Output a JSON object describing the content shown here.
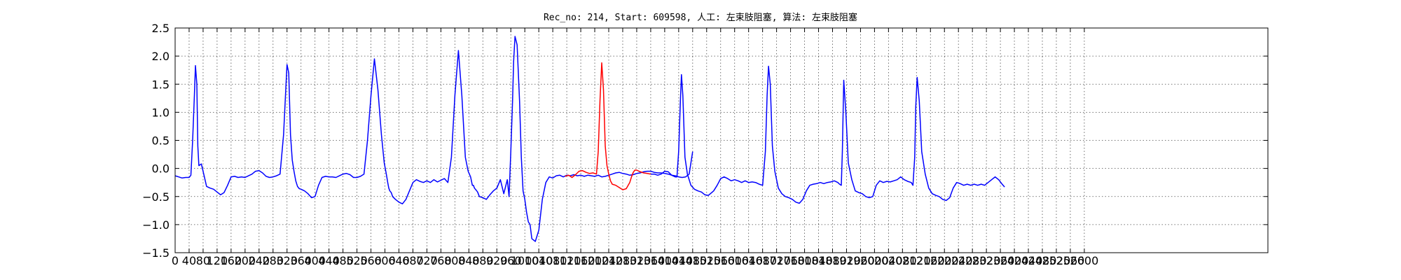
{
  "chart_data": {
    "type": "line",
    "title": "Rec_no: 214, Start: 609598, 人工: 左束肢阻塞, 算法: 左束肢阻塞",
    "xlabel": "",
    "ylabel": "",
    "xlim": [
      0,
      3125
    ],
    "ylim": [
      -1.5,
      2.5
    ],
    "grid": true,
    "y_ticks": [
      -1.5,
      -1.0,
      -0.5,
      0.0,
      0.5,
      1.0,
      1.5,
      2.0,
      2.5
    ],
    "y_tick_labels": [
      "−1.5",
      "−1.0",
      "−0.5",
      "0.0",
      "0.5",
      "1.0",
      "1.5",
      "2.0",
      "2.5"
    ],
    "x_ticks": [
      0,
      40,
      80,
      120,
      160,
      200,
      240,
      280,
      320,
      360,
      400,
      440,
      480,
      520,
      560,
      600,
      640,
      680,
      720,
      760,
      800,
      840,
      880,
      920,
      960,
      1000,
      1040,
      1080,
      1120,
      1160,
      1200,
      1240,
      1280,
      1320,
      1360,
      1400,
      1440,
      1480,
      1520,
      1560,
      1600,
      1640,
      1680,
      1720,
      1760,
      1800,
      1840,
      1880,
      1920,
      1960,
      2000,
      2040,
      2080,
      2120,
      2160,
      2200,
      2240,
      2280,
      2320,
      2360,
      2400,
      2440,
      2480,
      2520,
      2560,
      2600
    ],
    "x_tick_labels": [
      "0",
      "40",
      "80",
      "120",
      "160",
      "200",
      "240",
      "280",
      "320",
      "360",
      "400",
      "440",
      "480",
      "520",
      "560",
      "600",
      "640",
      "680",
      "720",
      "760",
      "800",
      "840",
      "880",
      "920",
      "960",
      "1000",
      "1040",
      "1080",
      "1120",
      "1160",
      "1200",
      "1240",
      "1280",
      "1320",
      "1360",
      "1400",
      "1440",
      "1480",
      "1520",
      "1560",
      "1600",
      "1640",
      "1680",
      "1720",
      "1760",
      "1800",
      "1840",
      "1880",
      "1920",
      "1960",
      "2000",
      "2040",
      "2080",
      "2120",
      "2160",
      "2200",
      "2240",
      "2280",
      "2320",
      "2360",
      "2400",
      "2440",
      "2480",
      "2520",
      "2560",
      "2600"
    ],
    "series": [
      {
        "color": "#0000ff",
        "x": [
          0,
          10,
          20,
          30,
          40,
          45,
          50,
          55,
          58,
          62,
          65,
          68,
          75,
          80,
          90,
          100,
          110,
          120,
          130,
          140,
          150,
          160,
          170,
          180,
          190,
          200,
          210,
          220,
          230,
          240,
          250,
          260,
          270,
          280,
          290,
          300,
          310,
          320,
          325,
          330,
          335,
          340,
          345,
          350,
          355,
          360,
          370,
          380,
          390,
          400,
          410,
          420,
          430,
          440,
          450,
          460,
          470,
          480,
          490,
          500,
          510,
          520,
          530,
          540,
          550,
          560,
          570,
          580,
          590,
          598,
          604,
          608,
          611,
          614,
          618,
          622,
          630,
          640,
          650,
          660,
          670,
          680,
          690,
          700,
          710,
          720,
          730,
          740,
          750,
          760,
          770,
          780,
          790,
          800,
          810,
          820,
          830,
          838,
          845,
          850,
          853,
          856,
          860,
          865,
          870,
          880,
          890,
          900,
          910,
          920,
          930,
          940,
          950,
          955,
          960,
          965,
          968,
          972,
          978,
          985,
          990,
          995,
          1000,
          1005,
          1010,
          1015,
          1020,
          1030,
          1040,
          1050,
          1060,
          1070,
          1080,
          1090,
          1100,
          1110,
          1120,
          1130,
          1140,
          1150,
          1160,
          1170,
          1180,
          1190,
          1200,
          1210,
          1220,
          1230,
          1240,
          1250,
          1260,
          1270,
          1280,
          1290,
          1300,
          1310,
          1320,
          1330,
          1340,
          1350,
          1360,
          1370,
          1380,
          1390,
          1400,
          1410,
          1420,
          1430,
          1440,
          1450,
          1460,
          1470,
          1480
        ],
        "y": [
          -0.13,
          -0.15,
          -0.17,
          -0.16,
          -0.16,
          -0.12,
          0.5,
          1.3,
          1.83,
          1.5,
          0.4,
          0.05,
          0.08,
          -0.05,
          -0.32,
          -0.35,
          -0.37,
          -0.42,
          -0.47,
          -0.43,
          -0.3,
          -0.15,
          -0.14,
          -0.16,
          -0.15,
          -0.16,
          -0.13,
          -0.1,
          -0.05,
          -0.04,
          -0.08,
          -0.14,
          -0.16,
          -0.15,
          -0.13,
          -0.1,
          0.6,
          1.85,
          1.7,
          0.6,
          0.15,
          -0.05,
          -0.22,
          -0.32,
          -0.36,
          -0.37,
          -0.4,
          -0.45,
          -0.52,
          -0.5,
          -0.3,
          -0.16,
          -0.14,
          -0.15,
          -0.15,
          -0.16,
          -0.13,
          -0.1,
          -0.09,
          -0.11,
          -0.16,
          -0.16,
          -0.14,
          -0.1,
          0.5,
          1.3,
          1.95,
          1.4,
          0.6,
          0.1,
          -0.1,
          -0.25,
          -0.35,
          -0.4,
          -0.43,
          -0.5,
          -0.55,
          -0.6,
          -0.63,
          -0.55,
          -0.4,
          -0.25,
          -0.2,
          -0.23,
          -0.25,
          -0.22,
          -0.25,
          -0.2,
          -0.24,
          -0.21,
          -0.18,
          -0.25,
          0.2,
          1.3,
          2.1,
          1.3,
          0.2,
          -0.05,
          -0.15,
          -0.3,
          -0.3,
          -0.35,
          -0.38,
          -0.42,
          -0.5,
          -0.52,
          -0.55,
          -0.47,
          -0.4,
          -0.35,
          -0.2,
          -0.45,
          -0.2,
          -0.5,
          0.3,
          1.2,
          1.9,
          2.35,
          2.2,
          1.2,
          0.2,
          -0.4,
          -0.55,
          -0.78,
          -0.95,
          -1.0,
          -1.25,
          -1.3,
          -1.1,
          -0.55,
          -0.25,
          -0.15,
          -0.17,
          -0.13,
          -0.12,
          -0.15,
          -0.12,
          -0.13,
          -0.11,
          -0.13,
          -0.12,
          -0.14,
          -0.12,
          -0.13,
          -0.14,
          -0.12,
          -0.15,
          -0.14,
          -0.12,
          -0.1,
          -0.08,
          -0.07,
          -0.09,
          -0.1,
          -0.12,
          -0.11,
          -0.09,
          -0.08,
          -0.06,
          -0.05,
          -0.05,
          -0.07,
          -0.08,
          -0.08,
          -0.09,
          -0.1,
          -0.12,
          -0.13,
          -0.15,
          -0.16,
          -0.15,
          -0.1,
          0.3
        ]
      },
      {
        "color": "#ff0000",
        "x": [
          1115,
          1125,
          1135,
          1145,
          1155,
          1165,
          1175,
          1185,
          1195,
          1205,
          1210,
          1215,
          1220,
          1225,
          1230,
          1235,
          1240,
          1245,
          1250,
          1260,
          1270,
          1280,
          1290,
          1300,
          1305,
          1310,
          1315,
          1320,
          1330,
          1340,
          1350,
          1360
        ],
        "y": [
          -0.14,
          -0.12,
          -0.16,
          -0.11,
          -0.05,
          -0.04,
          -0.07,
          -0.09,
          -0.08,
          -0.1,
          0.3,
          1.2,
          1.88,
          1.4,
          0.4,
          0.05,
          -0.1,
          -0.22,
          -0.28,
          -0.3,
          -0.34,
          -0.38,
          -0.36,
          -0.25,
          -0.15,
          -0.07,
          -0.03,
          -0.03,
          -0.06,
          -0.08,
          -0.09,
          -0.1
        ]
      },
      {
        "color": "#0000ff",
        "x": [
          1360,
          1370,
          1380,
          1390,
          1400,
          1410,
          1420,
          1430,
          1435,
          1440,
          1445,
          1448,
          1452,
          1458,
          1465,
          1475,
          1485,
          1495,
          1505,
          1515,
          1525,
          1540,
          1550,
          1560,
          1570,
          1580,
          1590,
          1600,
          1610,
          1620,
          1630,
          1640,
          1650,
          1660,
          1670,
          1680,
          1688,
          1693,
          1697,
          1702,
          1708,
          1715,
          1725,
          1735,
          1745,
          1755,
          1765,
          1775,
          1785,
          1795,
          1805,
          1815,
          1825,
          1835,
          1845,
          1855,
          1865,
          1875,
          1885,
          1895,
          1900,
          1905,
          1908,
          1912,
          1918,
          1925,
          1935,
          1945,
          1955,
          1965,
          1975,
          1985,
          1995,
          2005,
          2015,
          2025,
          2035,
          2045,
          2055,
          2065,
          2075,
          2085,
          2095,
          2105,
          2110,
          2115,
          2118,
          2122,
          2128,
          2135,
          2145,
          2155,
          2165,
          2175,
          2185,
          2195,
          2205,
          2215,
          2225,
          2235,
          2245,
          2255,
          2265,
          2275,
          2285,
          2295,
          2305,
          2315,
          2325,
          2335,
          2345,
          2355,
          2365,
          2372
        ],
        "y": [
          -0.1,
          -0.1,
          -0.12,
          -0.1,
          -0.05,
          -0.06,
          -0.12,
          -0.15,
          -0.15,
          0.3,
          1.2,
          1.67,
          1.3,
          0.2,
          -0.1,
          -0.3,
          -0.37,
          -0.4,
          -0.42,
          -0.47,
          -0.48,
          -0.4,
          -0.3,
          -0.18,
          -0.15,
          -0.18,
          -0.22,
          -0.2,
          -0.22,
          -0.25,
          -0.22,
          -0.25,
          -0.24,
          -0.25,
          -0.28,
          -0.3,
          0.3,
          1.3,
          1.82,
          1.5,
          0.4,
          -0.05,
          -0.35,
          -0.45,
          -0.5,
          -0.52,
          -0.55,
          -0.6,
          -0.62,
          -0.55,
          -0.4,
          -0.3,
          -0.28,
          -0.27,
          -0.25,
          -0.27,
          -0.25,
          -0.24,
          -0.22,
          -0.25,
          -0.28,
          -0.3,
          0.3,
          1.57,
          1.0,
          0.1,
          -0.2,
          -0.4,
          -0.43,
          -0.45,
          -0.5,
          -0.52,
          -0.5,
          -0.3,
          -0.22,
          -0.25,
          -0.23,
          -0.24,
          -0.22,
          -0.2,
          -0.15,
          -0.2,
          -0.23,
          -0.25,
          -0.3,
          0.2,
          1.1,
          1.62,
          1.2,
          0.3,
          -0.1,
          -0.35,
          -0.45,
          -0.48,
          -0.5,
          -0.55,
          -0.57,
          -0.52,
          -0.35,
          -0.25,
          -0.27,
          -0.3,
          -0.28,
          -0.3,
          -0.28,
          -0.3,
          -0.28,
          -0.3,
          -0.25,
          -0.2,
          -0.15,
          -0.2,
          -0.28,
          -0.33
        ]
      }
    ]
  }
}
